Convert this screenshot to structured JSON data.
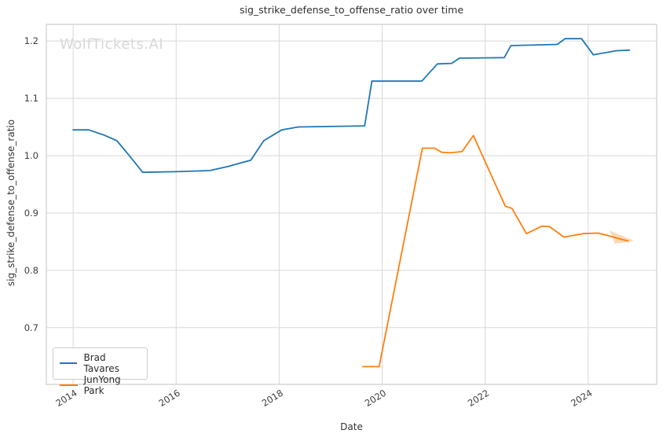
{
  "watermark": "WolfTickets.AI",
  "chart_data": {
    "type": "line",
    "title": "sig_strike_defense_to_offense_ratio over time",
    "xlabel": "Date",
    "ylabel": "sig_strike_defense_to_offense_ratio",
    "x_ticks": [
      2014,
      2016,
      2018,
      2020,
      2022,
      2024
    ],
    "y_ticks": [
      0.7,
      0.8,
      0.9,
      1.0,
      1.1,
      1.2
    ],
    "xlim": [
      2013.48,
      2025.33
    ],
    "ylim": [
      0.601,
      1.229
    ],
    "grid": true,
    "legend_position": "lower left",
    "series": [
      {
        "name": "Brad Tavares",
        "color": "#1f77b4",
        "points": [
          [
            2014.0,
            1.045
          ],
          [
            2014.3,
            1.045
          ],
          [
            2014.6,
            1.036
          ],
          [
            2014.85,
            1.026
          ],
          [
            2015.1,
            0.999
          ],
          [
            2015.35,
            0.971
          ],
          [
            2016.0,
            0.972
          ],
          [
            2016.65,
            0.974
          ],
          [
            2017.0,
            0.981
          ],
          [
            2017.45,
            0.992
          ],
          [
            2017.7,
            1.026
          ],
          [
            2018.05,
            1.045
          ],
          [
            2018.37,
            1.05
          ],
          [
            2019.66,
            1.052
          ],
          [
            2019.8,
            1.13
          ],
          [
            2020.77,
            1.13
          ],
          [
            2021.07,
            1.16
          ],
          [
            2021.35,
            1.161
          ],
          [
            2021.5,
            1.17
          ],
          [
            2022.37,
            1.171
          ],
          [
            2022.5,
            1.192
          ],
          [
            2023.4,
            1.194
          ],
          [
            2023.55,
            1.204
          ],
          [
            2023.87,
            1.204
          ],
          [
            2024.1,
            1.176
          ],
          [
            2024.55,
            1.183
          ],
          [
            2024.8,
            1.184
          ]
        ]
      },
      {
        "name": "JunYong Park",
        "color": "#ff7f0e",
        "points": [
          [
            2019.62,
            0.632
          ],
          [
            2019.94,
            0.632
          ],
          [
            2020.78,
            1.013
          ],
          [
            2021.02,
            1.013
          ],
          [
            2021.15,
            1.006
          ],
          [
            2021.32,
            1.005
          ],
          [
            2021.55,
            1.007
          ],
          [
            2021.77,
            1.035
          ],
          [
            2022.39,
            0.912
          ],
          [
            2022.52,
            0.908
          ],
          [
            2022.8,
            0.864
          ],
          [
            2023.1,
            0.877
          ],
          [
            2023.25,
            0.876
          ],
          [
            2023.53,
            0.858
          ],
          [
            2023.9,
            0.864
          ],
          [
            2024.2,
            0.865
          ],
          [
            2024.78,
            0.851
          ]
        ]
      }
    ],
    "annotations": [
      {
        "type": "arrowhead",
        "color": "#ff7f0e",
        "opacity": 0.3,
        "points": [
          [
            2024.415,
            0.8694
          ],
          [
            2024.89,
            0.8516
          ],
          [
            2024.52,
            0.8461
          ]
        ]
      }
    ]
  },
  "legend": {
    "items": [
      {
        "label": "Brad Tavares",
        "color": "#1f77b4"
      },
      {
        "label": "JunYong Park",
        "color": "#ff7f0e"
      }
    ]
  },
  "style": {
    "grid_color": "#d9d9d9",
    "border_color": "#cccccc",
    "tick_color": "#3d3d3d"
  }
}
